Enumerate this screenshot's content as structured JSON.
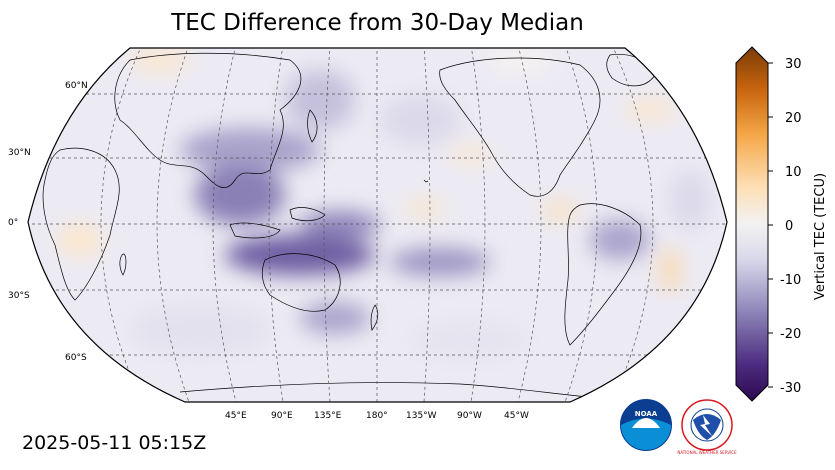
{
  "title": "TEC Difference from 30-Day Median",
  "timestamp": "2025-05-11 05:15Z",
  "colorbar": {
    "label": "Vertical TEC (TECU)",
    "ticks": [
      "30",
      "20",
      "10",
      "0",
      "-10",
      "-20",
      "-30"
    ],
    "min": -30,
    "max": 30,
    "color_low": "#2d0a4f",
    "color_mid": "#f2f2f2",
    "color_high": "#7a3c06"
  },
  "map": {
    "projection": "Robinson",
    "central_longitude": "180",
    "lat_labels": [
      "60°N",
      "30°N",
      "0°",
      "30°S",
      "60°S"
    ],
    "lon_labels": [
      "45°E",
      "90°E",
      "135°E",
      "180°",
      "135°W",
      "90°W",
      "45°W"
    ],
    "grid": "dashed"
  },
  "logos": {
    "noaa": "NOAA",
    "nws": "NATIONAL WEATHER SERVICE"
  }
}
